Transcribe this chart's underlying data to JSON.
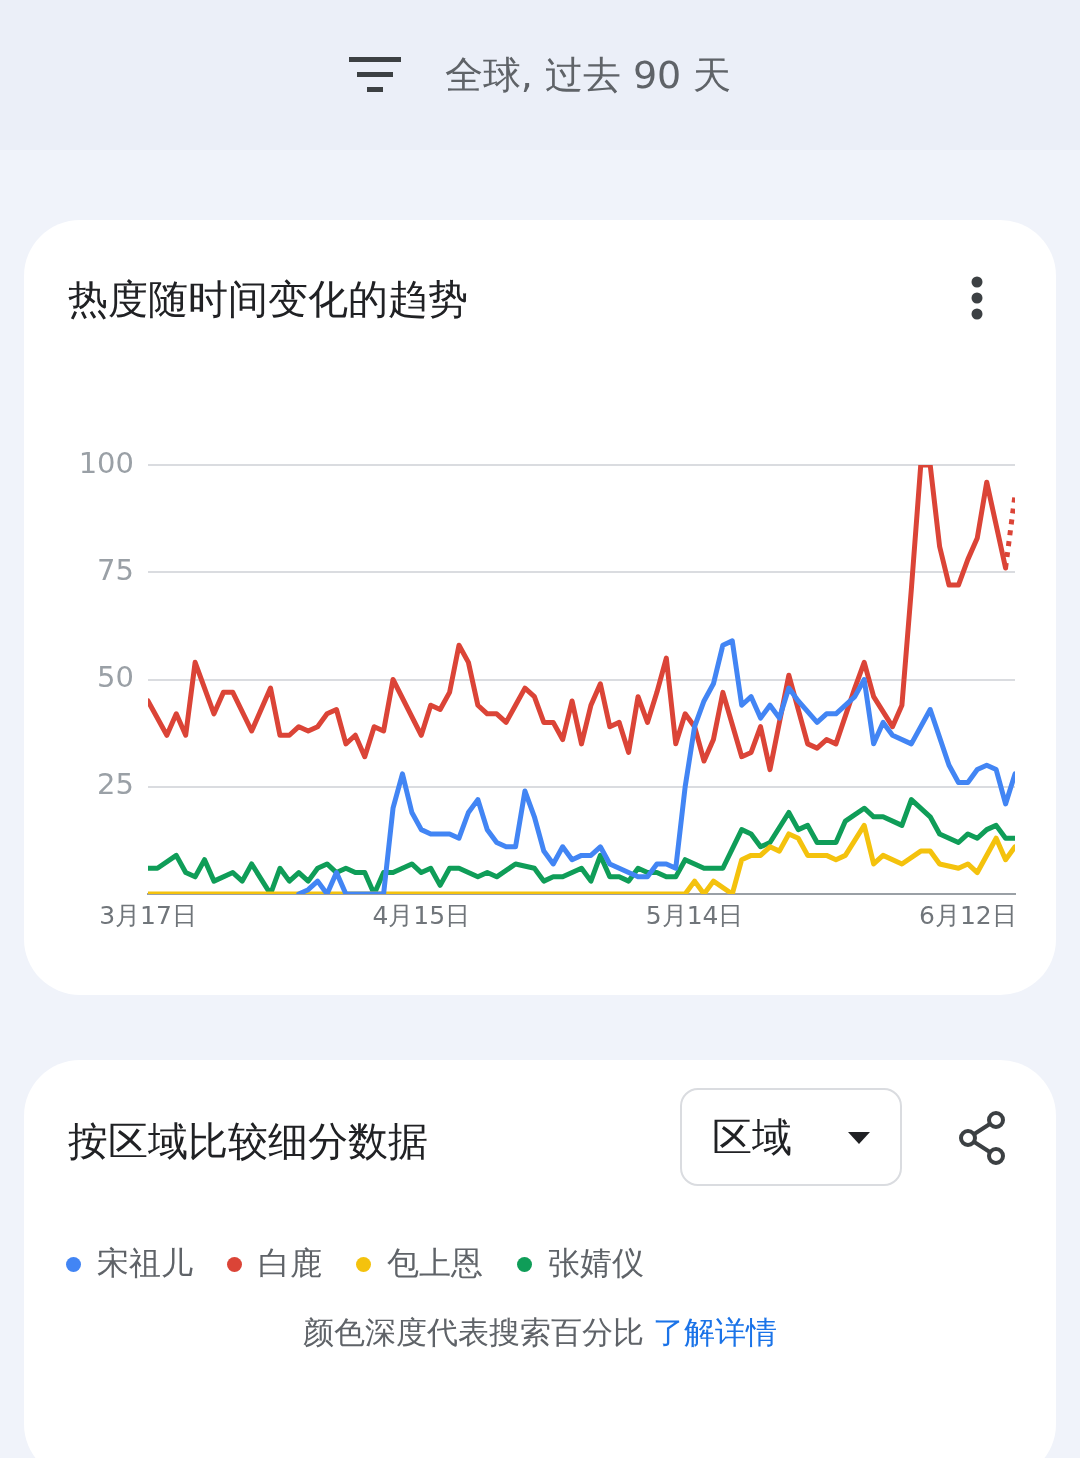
{
  "chart_data": {
    "type": "line",
    "title": "热度随时间变化的趋势",
    "subtitle": "全球, 过去 90 天",
    "xlim": [
      "--03-17",
      "--06-17"
    ],
    "xticks": [
      {
        "value": "--03-17",
        "label": "3月17日"
      },
      {
        "value": "--04-15",
        "label": "4月15日"
      },
      {
        "value": "--05-14",
        "label": "5月14日"
      },
      {
        "value": "--06-12",
        "label": "6月12日"
      }
    ],
    "ylim": [
      0,
      100
    ],
    "yticks": [
      {
        "value": 0,
        "label": null
      },
      25,
      50,
      75,
      100
    ],
    "grid": "y",
    "legend": "bottom",
    "marker": "none",
    "annotations": [
      "按区域比较细分数据",
      "区域",
      "颜色深度代表搜索百分比",
      "了解详情"
    ],
    "series": [
      {
        "name": "宋祖儿",
        "color": "#4285f4",
        "x": [
          "--04-02",
          "--04-03",
          "--04-04",
          "--04-05",
          "--04-06",
          "--04-07",
          "--04-11",
          "--04-12",
          "--04-13",
          "--04-14",
          "--04-15",
          "--04-16",
          "--04-18",
          "--04-19",
          "--04-20",
          "--04-21",
          "--04-22",
          "--04-23",
          "--04-24",
          "--04-25",
          "--04-26",
          "--04-27",
          "--04-28",
          "--04-29",
          "--04-30",
          "--05-01",
          "--05-02",
          "--05-03",
          "--05-04",
          "--05-05",
          "--05-07",
          "--05-08",
          "--05-09",
          "--05-10",
          "--05-11",
          "--05-12",
          "--05-13",
          "--05-14",
          "--05-15",
          "--05-16",
          "--05-17",
          "--05-18",
          "--05-19",
          "--05-20",
          "--05-21",
          "--05-22",
          "--05-23",
          "--05-24",
          "--05-25",
          "--05-27",
          "--05-28",
          "--05-29",
          "--05-31",
          "--06-01",
          "--06-02",
          "--06-03",
          "--06-04",
          "--06-06",
          "--06-08",
          "--06-10",
          "--06-11",
          "--06-12",
          "--06-13",
          "--06-14",
          "--06-15",
          "--06-16",
          "--06-17"
        ],
        "values": [
          0,
          1,
          3,
          0,
          5,
          0,
          0,
          20,
          28,
          19,
          15,
          14,
          14,
          13,
          19,
          22,
          15,
          12,
          11,
          11,
          24,
          18,
          10,
          7,
          11,
          8,
          9,
          9,
          11,
          7,
          5,
          4,
          4,
          7,
          7,
          6,
          25,
          39,
          45,
          49,
          58,
          59,
          44,
          46,
          41,
          44,
          41,
          48,
          45,
          40,
          42,
          42,
          46,
          50,
          35,
          40,
          37,
          35,
          43,
          30,
          26,
          26,
          29,
          30,
          29,
          21,
          28
        ]
      },
      {
        "name": "白鹿",
        "color": "#db4437",
        "x": [
          "--03-17",
          "--03-19",
          "--03-20",
          "--03-21",
          "--03-22",
          "--03-24",
          "--03-25",
          "--03-26",
          "--03-28",
          "--03-30",
          "--03-31",
          "--04-01",
          "--04-02",
          "--04-03",
          "--04-04",
          "--04-05",
          "--04-06",
          "--04-07",
          "--04-08",
          "--04-09",
          "--04-10",
          "--04-11",
          "--04-12",
          "--04-15",
          "--04-16",
          "--04-17",
          "--04-18",
          "--04-19",
          "--04-20",
          "--04-21",
          "--04-22",
          "--04-23",
          "--04-24",
          "--04-25",
          "--04-26",
          "--04-27",
          "--04-28",
          "--04-29",
          "--04-30",
          "--05-01",
          "--05-02",
          "--05-03",
          "--05-04",
          "--05-05",
          "--05-06",
          "--05-07",
          "--05-08",
          "--05-09",
          "--05-10",
          "--05-11",
          "--05-12",
          "--05-13",
          "--05-14",
          "--05-15",
          "--05-16",
          "--05-17",
          "--05-19",
          "--05-20",
          "--05-21",
          "--05-22",
          "--05-24",
          "--05-26",
          "--05-27",
          "--05-28",
          "--05-29",
          "--05-31",
          "--06-01",
          "--06-02",
          "--06-04",
          "--06-05",
          "--06-06",
          "--06-07",
          "--06-08",
          "--06-09",
          "--06-10",
          "--06-11",
          "--06-12",
          "--06-13",
          "--06-14",
          "--06-16"
        ],
        "values": [
          45,
          37,
          42,
          37,
          54,
          42,
          47,
          47,
          38,
          48,
          37,
          37,
          39,
          38,
          39,
          42,
          43,
          35,
          37,
          32,
          39,
          38,
          50,
          37,
          44,
          43,
          47,
          58,
          54,
          44,
          42,
          42,
          40,
          44,
          48,
          46,
          40,
          40,
          36,
          45,
          35,
          44,
          49,
          39,
          40,
          33,
          46,
          40,
          47,
          55,
          35,
          42,
          39,
          31,
          36,
          47,
          32,
          33,
          39,
          29,
          51,
          35,
          34,
          36,
          35,
          48,
          54,
          46,
          39,
          44,
          71,
          100,
          100,
          81,
          72,
          72,
          78,
          83,
          96,
          76
        ]
      },
      {
        "name": "包上恩",
        "color": "#f4c20d",
        "x": [
          "--03-17",
          "--05-13",
          "--05-14",
          "--05-15",
          "--05-16",
          "--05-18",
          "--05-19",
          "--05-20",
          "--05-21",
          "--05-22",
          "--05-23",
          "--05-24",
          "--05-25",
          "--05-26",
          "--05-28",
          "--05-29",
          "--05-30",
          "--06-01",
          "--06-02",
          "--06-03",
          "--06-05",
          "--06-07",
          "--06-08",
          "--06-09",
          "--06-11",
          "--06-12",
          "--06-13",
          "--06-15",
          "--06-16",
          "--06-17"
        ],
        "values": [
          0,
          0,
          3,
          0,
          3,
          0,
          8,
          9,
          9,
          11,
          10,
          14,
          13,
          9,
          9,
          8,
          9,
          16,
          7,
          9,
          7,
          10,
          10,
          7,
          6,
          7,
          5,
          13,
          8,
          11
        ]
      },
      {
        "name": "张婧仪",
        "color": "#0f9d58",
        "x": [
          "--03-17",
          "--03-18",
          "--03-20",
          "--03-21",
          "--03-22",
          "--03-23",
          "--03-24",
          "--03-26",
          "--03-27",
          "--03-28",
          "--03-30",
          "--03-31",
          "--04-01",
          "--04-02",
          "--04-03",
          "--04-04",
          "--04-05",
          "--04-06",
          "--04-07",
          "--04-08",
          "--04-09",
          "--04-10",
          "--04-11",
          "--04-12",
          "--04-14",
          "--04-15",
          "--04-16",
          "--04-17",
          "--04-18",
          "--04-19",
          "--04-21",
          "--04-22",
          "--04-23",
          "--04-25",
          "--04-27",
          "--04-28",
          "--04-29",
          "--04-30",
          "--05-02",
          "--05-03",
          "--05-04",
          "--05-05",
          "--05-06",
          "--05-07",
          "--05-08",
          "--05-09",
          "--05-10",
          "--05-11",
          "--05-12",
          "--05-13",
          "--05-14",
          "--05-15",
          "--05-17",
          "--05-19",
          "--05-20",
          "--05-21",
          "--05-22",
          "--05-24",
          "--05-25",
          "--05-26",
          "--05-27",
          "--05-29",
          "--05-30",
          "--06-01",
          "--06-02",
          "--06-03",
          "--06-05",
          "--06-06",
          "--06-08",
          "--06-09",
          "--06-11",
          "--06-12",
          "--06-13",
          "--06-14",
          "--06-15",
          "--06-16",
          "--06-17"
        ],
        "values": [
          6,
          6,
          9,
          5,
          4,
          8,
          3,
          5,
          3,
          7,
          0,
          6,
          3,
          5,
          3,
          6,
          7,
          5,
          6,
          5,
          5,
          0,
          5,
          5,
          7,
          5,
          6,
          2,
          6,
          6,
          4,
          5,
          4,
          7,
          6,
          3,
          4,
          4,
          6,
          3,
          9,
          4,
          4,
          3,
          6,
          5,
          5,
          4,
          4,
          8,
          7,
          6,
          6,
          15,
          14,
          11,
          12,
          19,
          15,
          16,
          12,
          12,
          17,
          20,
          18,
          18,
          16,
          22,
          18,
          14,
          12,
          14,
          13,
          15,
          16,
          13,
          13
        ]
      },
      {
        "color": "#db4437",
        "line_style": "dotted",
        "x": [
          "--06-16",
          "--06-17"
        ],
        "values": [
          76,
          93
        ]
      }
    ]
  }
}
